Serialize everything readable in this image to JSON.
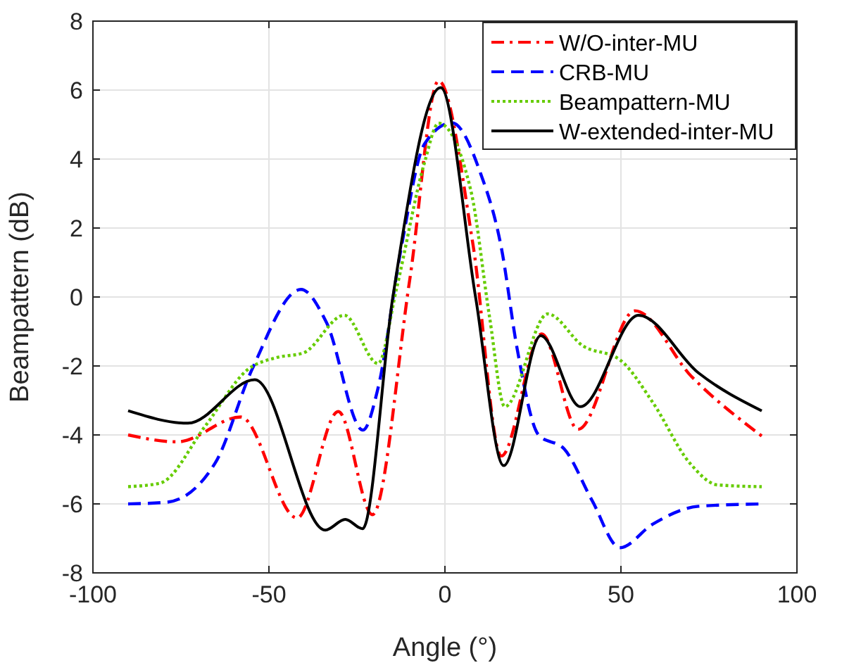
{
  "chart_data": {
    "type": "line",
    "xlabel": "Angle (°)",
    "ylabel": "Beampattern (dB)",
    "xlim": [
      -100,
      100
    ],
    "ylim": [
      -8,
      8
    ],
    "xticks": [
      -100,
      -50,
      0,
      50,
      100
    ],
    "yticks": [
      -8,
      -6,
      -4,
      -2,
      0,
      2,
      4,
      6,
      8
    ],
    "grid": true,
    "legend": "top right",
    "series": [
      {
        "name": "W/O-inter-MU",
        "color": "#ff0000",
        "line_style": "dashdot",
        "x": [
          -90,
          -76,
          -58,
          -42,
          -30.3,
          -20.6,
          -10,
          -1.8,
          8,
          16,
          27.5,
          37.8,
          54,
          70,
          90
        ],
        "values": [
          -4.0,
          -4.2,
          -3.48,
          -6.41,
          -3.32,
          -6.31,
          0.5,
          6.27,
          1.5,
          -4.61,
          -1.07,
          -3.84,
          -0.4,
          -2.3,
          -4.03
        ]
      },
      {
        "name": "CRB-MU",
        "color": "#0000ff",
        "line_style": "dashed",
        "x": [
          -90,
          -79,
          -65.3,
          -54.8,
          -40.9,
          -33.7,
          -23.3,
          -19,
          -12.4,
          -5.8,
          2,
          10,
          16,
          20.6,
          26.6,
          33.9,
          41.8,
          49.7,
          59,
          72,
          90
        ],
        "values": [
          -6.0,
          -5.95,
          -4.82,
          -2.1,
          0.22,
          -0.73,
          -3.86,
          -2.64,
          1.44,
          4.44,
          5.05,
          3.62,
          1.44,
          -1.55,
          -4.0,
          -4.41,
          -5.9,
          -7.27,
          -6.59,
          -6.07,
          -6.0
        ]
      },
      {
        "name": "Beampattern-MU",
        "color": "#66cc00",
        "line_style": "dotted",
        "x": [
          -90,
          -81,
          -68,
          -56,
          -48,
          -40.2,
          -28.6,
          -19,
          -13.8,
          -5.8,
          -1.8,
          7.4,
          12.7,
          17,
          29.2,
          39.1,
          49.7,
          59,
          69.6,
          77.5,
          90
        ],
        "values": [
          -5.5,
          -5.4,
          -3.73,
          -2.1,
          -1.76,
          -1.62,
          -0.53,
          -1.93,
          0.22,
          3.9,
          5.04,
          3.07,
          -0.6,
          -3.18,
          -0.49,
          -1.41,
          -1.82,
          -3.05,
          -4.82,
          -5.45,
          -5.5
        ]
      },
      {
        "name": "W-extended-inter-MU",
        "color": "#000000",
        "line_style": "solid",
        "x": [
          -90,
          -73,
          -54,
          -34,
          -28.3,
          -23.4,
          -14.8,
          -1.2,
          8.7,
          16.7,
          27.2,
          38.5,
          55,
          72,
          90
        ],
        "values": [
          -3.3,
          -3.66,
          -2.4,
          -6.76,
          -6.45,
          -6.72,
          0,
          6.07,
          0,
          -4.89,
          -1.12,
          -3.18,
          -0.53,
          -2.2,
          -3.3
        ]
      }
    ]
  }
}
